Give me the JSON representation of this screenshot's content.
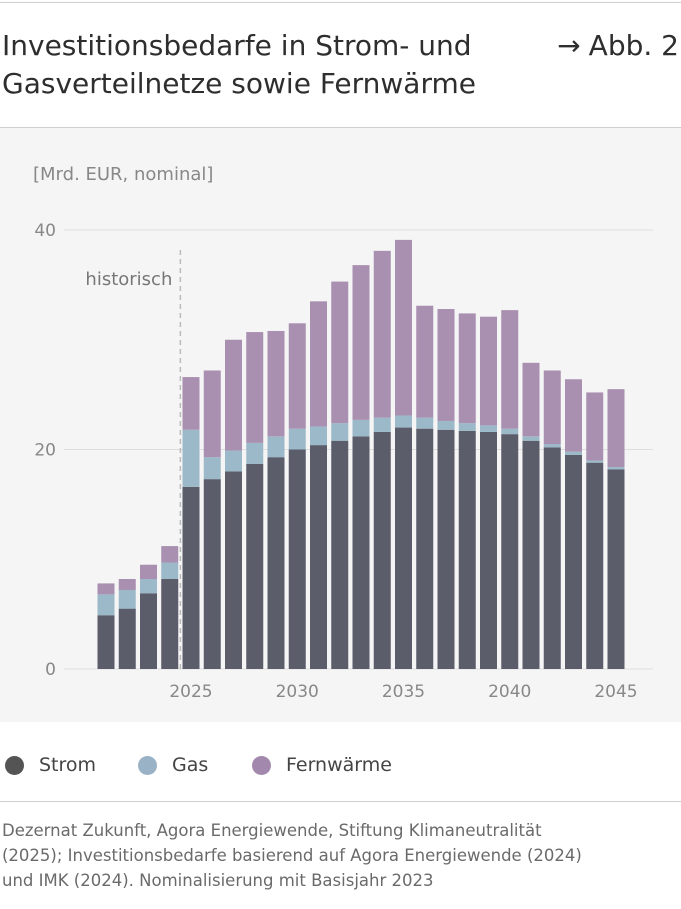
{
  "header": {
    "title_line1": "Investitionsbedarfe in Strom- und",
    "title_line2": "Gasverteilnetze sowie Fernwärme",
    "figure_ref": "Abb. 2",
    "figure_ref_arrow": "→"
  },
  "chart_data": {
    "type": "bar",
    "stacked": true,
    "unit_label": "[Mrd. EUR, nominal]",
    "annotation": "historisch",
    "historic_until": 2024,
    "x": [
      2021,
      2022,
      2023,
      2024,
      2025,
      2026,
      2027,
      2028,
      2029,
      2030,
      2031,
      2032,
      2033,
      2034,
      2035,
      2036,
      2037,
      2038,
      2039,
      2040,
      2041,
      2042,
      2043,
      2044,
      2045
    ],
    "x_ticks": [
      "2025",
      "2030",
      "2035",
      "2040",
      "2045"
    ],
    "y_ticks": [
      "0",
      "20",
      "40"
    ],
    "ylim": [
      0,
      40
    ],
    "grid": true,
    "series": [
      {
        "name": "Strom",
        "color": "#5c5d6b",
        "values": [
          4.9,
          5.5,
          6.9,
          8.2,
          16.6,
          17.3,
          18.0,
          18.7,
          19.3,
          20.0,
          20.4,
          20.8,
          21.2,
          21.6,
          22.0,
          21.9,
          21.8,
          21.7,
          21.6,
          21.4,
          20.8,
          20.2,
          19.5,
          18.8,
          18.2
        ]
      },
      {
        "name": "Gas",
        "color": "#9bb9c8",
        "values": [
          1.9,
          1.7,
          1.3,
          1.5,
          5.2,
          2.0,
          1.9,
          1.9,
          1.9,
          1.9,
          1.7,
          1.6,
          1.5,
          1.3,
          1.1,
          1.0,
          0.8,
          0.7,
          0.6,
          0.5,
          0.4,
          0.3,
          0.3,
          0.2,
          0.2
        ]
      },
      {
        "name": "Fernwärme",
        "color": "#a990b0",
        "values": [
          1.0,
          1.0,
          1.3,
          1.5,
          4.8,
          7.9,
          10.1,
          10.1,
          9.6,
          9.6,
          11.4,
          12.9,
          14.1,
          15.2,
          16.0,
          10.2,
          10.2,
          10.0,
          9.9,
          10.8,
          6.7,
          6.7,
          6.6,
          6.2,
          7.1
        ]
      }
    ]
  },
  "legend": [
    {
      "label": "Strom",
      "color": "#545454"
    },
    {
      "label": "Gas",
      "color": "#9ab2c6"
    },
    {
      "label": "Fernwärme",
      "color": "#a388ad"
    }
  ],
  "source_lines": [
    "Dezernat Zukunft, Agora Energiewende, Stiftung Klimaneutralität",
    "(2025); Investitionsbedarfe basierend auf Agora Energiewende (2024)",
    "und IMK (2024). Nominalisierung mit Basisjahr 2023"
  ]
}
